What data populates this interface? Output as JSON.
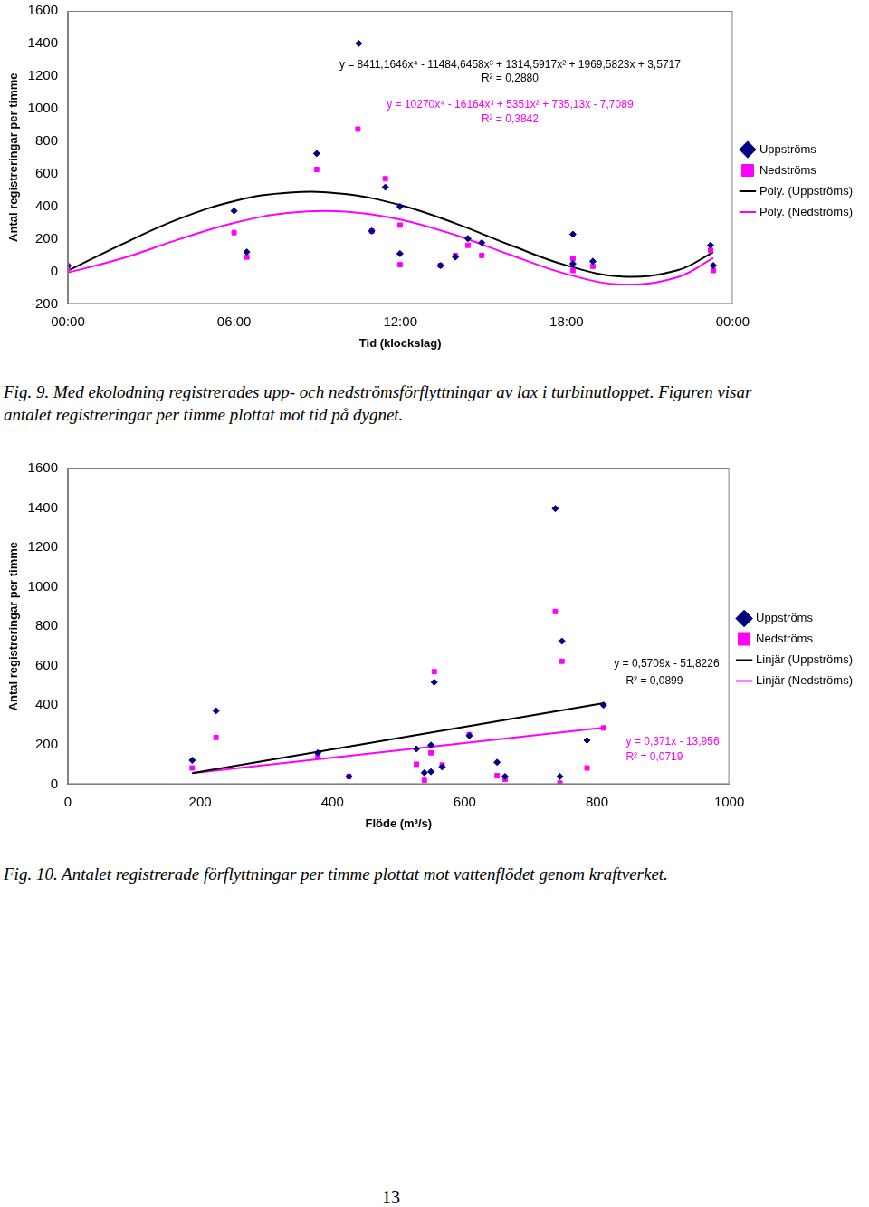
{
  "chart_data": [
    {
      "type": "scatter",
      "x_label": "Tid (klockslag)",
      "y_label": "Antal registreringar per timme",
      "caption": "Fig. 9. Med ekolodning registrerades upp- och nedströmsförflyttningar av lax i turbinutloppet. Figuren visar antalet registreringar per timme plottat mot tid på dygnet.",
      "xlim": [
        0,
        24
      ],
      "xticks": [
        {
          "value": 0,
          "label": "00:00"
        },
        {
          "value": 6,
          "label": "06:00"
        },
        {
          "value": 12,
          "label": "12:00"
        },
        {
          "value": 18,
          "label": "18:00"
        },
        {
          "value": 24,
          "label": "00:00"
        }
      ],
      "ylim": [
        -200,
        1600
      ],
      "yticks": [
        -200,
        0,
        200,
        400,
        600,
        800,
        1000,
        1200,
        1400,
        1600
      ],
      "grid": false,
      "legend": "right",
      "series": [
        {
          "name": "Uppströms",
          "type": "scatter",
          "color": "#000080",
          "marker": "diamond",
          "x": [
            0.0,
            6.0,
            6.46,
            8.98,
            10.5,
            10.97,
            11.46,
            11.99,
            11.99,
            13.45,
            13.99,
            14.44,
            14.94,
            18.23,
            18.23,
            18.95,
            23.2,
            23.3
          ],
          "values": [
            36,
            372,
            119,
            724,
            1400,
            248,
            517,
            398,
            109,
            36,
            88,
            202,
            176,
            228,
            47,
            62,
            160,
            36
          ]
        },
        {
          "name": "Nedströms",
          "type": "scatter",
          "color": "#ff00ff",
          "marker": "square",
          "x": [
            0.0,
            6.0,
            6.46,
            8.98,
            10.47,
            10.97,
            11.46,
            11.99,
            11.99,
            13.45,
            13.99,
            14.44,
            14.94,
            18.23,
            18.23,
            18.95,
            23.2,
            23.3
          ],
          "values": [
            21,
            238,
            88,
            626,
            874,
            248,
            569,
            284,
            41,
            36,
            98,
            160,
            98,
            78,
            5,
            31,
            129,
            5
          ]
        },
        {
          "name": "Poly. (Uppströms)",
          "type": "line",
          "color": "#000000",
          "line_style": "solid",
          "x": [
            0,
            2,
            4,
            6,
            8,
            10,
            12,
            14,
            16,
            18,
            20,
            22,
            23.3
          ],
          "values": [
            3.6,
            170.6,
            321.7,
            431.6,
            484.6,
            475.2,
            407.1,
            294.0,
            159.5,
            36.5,
            -32.1,
            6.5,
            117.8
          ]
        },
        {
          "name": "Poly. (Nedströms)",
          "type": "line",
          "color": "#ff00ff",
          "line_style": "solid",
          "x": [
            0,
            2,
            4,
            6,
            8,
            10,
            12,
            14,
            16,
            18,
            20,
            22,
            23.3
          ],
          "values": [
            -7.7,
            81.9,
            196.5,
            298.0,
            360.0,
            367.8,
            319.0,
            222.5,
            99.8,
            -16.1,
            -80.6,
            -36.5,
            82.2
          ]
        }
      ],
      "annotations": [
        {
          "text": "y = 8411,1646x⁴ - 11484,6458x³ + 1314,5917x² + 1969,5823x + 3,5717",
          "color": "#000000"
        },
        {
          "text": "R² = 0,2880",
          "color": "#000000"
        },
        {
          "text": "y = 10270x⁴ - 16164x³ + 5351x² + 735,13x - 7,7089",
          "color": "#ff00ff"
        },
        {
          "text": "R² = 0,3842",
          "color": "#ff00ff"
        }
      ]
    },
    {
      "type": "scatter",
      "x_label": "Flöde (m³/s)",
      "y_label": "Antal registreringar per timme",
      "caption": "Fig. 10. Antalet registrerade förflyttningar per timme plottat mot vattenflödet genom kraftverket.",
      "xlim": [
        0,
        1000
      ],
      "xticks": [
        0,
        200,
        400,
        600,
        800,
        1000
      ],
      "ylim": [
        0,
        1600
      ],
      "yticks": [
        0,
        200,
        400,
        600,
        800,
        1000,
        1200,
        1400,
        1600
      ],
      "grid": false,
      "legend": "right",
      "series": [
        {
          "name": "Uppströms",
          "type": "scatter",
          "color": "#000080",
          "marker": "diamond",
          "x": [
            188,
            224,
            378,
            425,
            527,
            539,
            549,
            549,
            554,
            566,
            607,
            649,
            661,
            737,
            747,
            744,
            785,
            810
          ],
          "values": [
            121,
            372,
            159,
            39,
            179,
            58,
            63,
            198,
            517,
            87,
            246,
            111,
            39,
            1397,
            725,
            39,
            222,
            401
          ]
        },
        {
          "name": "Nedströms",
          "type": "scatter",
          "color": "#ff00ff",
          "marker": "square",
          "x": [
            188,
            224,
            378,
            425,
            527,
            539,
            549,
            554,
            566,
            607,
            649,
            661,
            737,
            747,
            744,
            785,
            810
          ],
          "values": [
            82,
            237,
            140,
            39,
            101,
            19,
            159,
            570,
            97,
            251,
            43,
            24,
            875,
            623,
            5,
            82,
            285
          ]
        },
        {
          "name": "Linjär (Uppströms)",
          "type": "line",
          "color": "#000000",
          "line_style": "solid",
          "x": [
            188,
            810
          ],
          "values": [
            55.5,
            410.6
          ]
        },
        {
          "name": "Linjär (Nedströms)",
          "type": "line",
          "color": "#ff00ff",
          "line_style": "solid",
          "x": [
            188,
            810
          ],
          "values": [
            55.8,
            286.6
          ]
        }
      ],
      "annotations": [
        {
          "text": "y = 0,5709x - 51,8226",
          "color": "#000000"
        },
        {
          "text": "R² = 0,0899",
          "color": "#000000"
        },
        {
          "text": "y = 0,371x - 13,956",
          "color": "#ff00ff"
        },
        {
          "text": "R² = 0,0719",
          "color": "#ff00ff"
        }
      ]
    }
  ],
  "page_number": "13"
}
